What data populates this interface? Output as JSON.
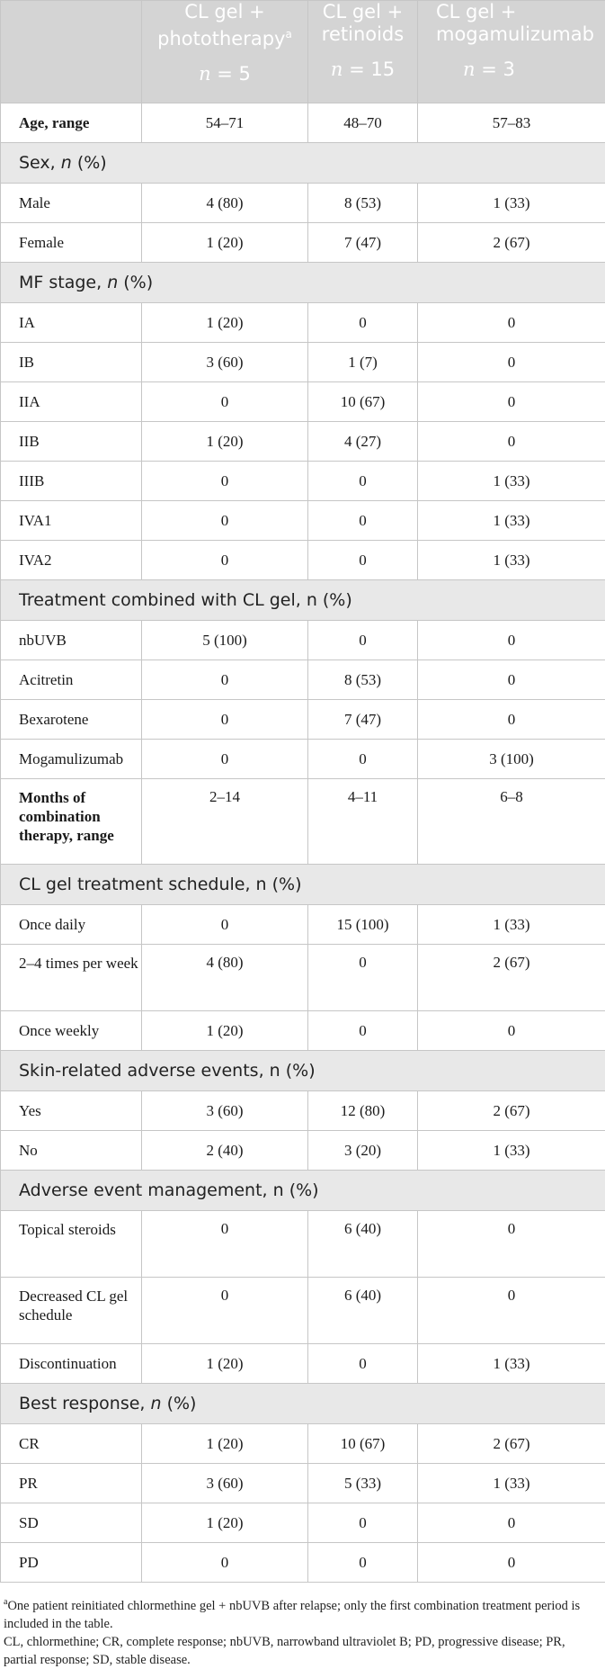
{
  "header": {
    "columns": [
      {
        "line1": "CL gel +",
        "line2": "phototherapy",
        "sup": "a",
        "n_label": "n",
        "n_value": "= 5"
      },
      {
        "line1": "CL gel +",
        "line2": "retinoids",
        "sup": "",
        "n_label": "n",
        "n_value": "= 15"
      },
      {
        "line1": "CL gel +",
        "line2": "mogamulizumab",
        "sup": "",
        "n_label": "n",
        "n_value": "= 3"
      }
    ]
  },
  "rows": {
    "age": {
      "label": "Age, range",
      "v": [
        "54–71",
        "48–70",
        "57–83"
      ]
    },
    "sex_section": {
      "text": "Sex, ",
      "n": "n",
      "pct": " (%)"
    },
    "male": {
      "label": "Male",
      "v": [
        "4 (80)",
        "8 (53)",
        "1 (33)"
      ]
    },
    "female": {
      "label": "Female",
      "v": [
        "1 (20)",
        "7 (47)",
        "2 (67)"
      ]
    },
    "mf_section": {
      "text": "MF stage, ",
      "n": "n",
      "pct": " (%)"
    },
    "ia": {
      "label": "IA",
      "v": [
        "1 (20)",
        "0",
        "0"
      ]
    },
    "ib": {
      "label": "IB",
      "v": [
        "3 (60)",
        "1 (7)",
        "0"
      ]
    },
    "iia": {
      "label": "IIA",
      "v": [
        "0",
        "10 (67)",
        "0"
      ]
    },
    "iib": {
      "label": "IIB",
      "v": [
        "1 (20)",
        "4 (27)",
        "0"
      ]
    },
    "iiib": {
      "label": "IIIB",
      "v": [
        "0",
        "0",
        "1 (33)"
      ]
    },
    "iva1": {
      "label": "IVA1",
      "v": [
        "0",
        "0",
        "1 (33)"
      ]
    },
    "iva2": {
      "label": "IVA2",
      "v": [
        "0",
        "0",
        "1 (33)"
      ]
    },
    "treat_section": {
      "text": "Treatment combined with CL gel, n (%)"
    },
    "nbuvb": {
      "label": "nbUVB",
      "v": [
        "5 (100)",
        "0",
        "0"
      ]
    },
    "acitretin": {
      "label": "Acitretin",
      "v": [
        "0",
        "8 (53)",
        "0"
      ]
    },
    "bexarotene": {
      "label": "Bexarotene",
      "v": [
        "0",
        "7 (47)",
        "0"
      ]
    },
    "mogamulizumab": {
      "label": "Mogamulizumab",
      "v": [
        "0",
        "0",
        "3 (100)"
      ]
    },
    "months": {
      "label": "Months of combination therapy, range",
      "v": [
        "2–14",
        "4–11",
        "6–8"
      ]
    },
    "schedule_section": {
      "text": "CL gel treatment schedule, n (%)"
    },
    "once_daily": {
      "label": "Once daily",
      "v": [
        "0",
        "15 (100)",
        "1 (33)"
      ]
    },
    "two_four": {
      "label": "2–4 times per week",
      "v": [
        "4 (80)",
        "0",
        "2 (67)"
      ]
    },
    "once_weekly": {
      "label": "Once weekly",
      "v": [
        "1 (20)",
        "0",
        "0"
      ]
    },
    "ae_section": {
      "text": "Skin-related adverse events, n (%)"
    },
    "yes": {
      "label": "Yes",
      "v": [
        "3 (60)",
        "12 (80)",
        "2 (67)"
      ]
    },
    "no": {
      "label": "No",
      "v": [
        "2 (40)",
        "3 (20)",
        "1 (33)"
      ]
    },
    "mgmt_section": {
      "text": "Adverse event management, n (%)"
    },
    "topical": {
      "label": "Topical steroids",
      "v": [
        "0",
        "6 (40)",
        "0"
      ]
    },
    "decreased": {
      "label": "Decreased CL gel schedule",
      "v": [
        "0",
        "6 (40)",
        "0"
      ]
    },
    "discontinuation": {
      "label": "Discontinuation",
      "v": [
        "1 (20)",
        "0",
        "1 (33)"
      ]
    },
    "best_section": {
      "text": "Best response, ",
      "n": "n",
      "pct": " (%)"
    },
    "cr": {
      "label": "CR",
      "v": [
        "1 (20)",
        "10 (67)",
        "2 (67)"
      ]
    },
    "pr": {
      "label": "PR",
      "v": [
        "3 (60)",
        "5 (33)",
        "1 (33)"
      ]
    },
    "sd": {
      "label": "SD",
      "v": [
        "1 (20)",
        "0",
        "0"
      ]
    },
    "pd": {
      "label": "PD",
      "v": [
        "0",
        "0",
        "0"
      ]
    }
  },
  "footnotes": {
    "a_sup": "a",
    "a_text": "One patient reinitiated chlormethine gel + nbUVB after relapse; only the first combination treatment period is included in the table.",
    "abbrev": "CL, chlormethine; CR, complete response; nbUVB, narrowband ultraviolet B; PD, progressive disease; PR, partial response; SD, stable disease."
  }
}
